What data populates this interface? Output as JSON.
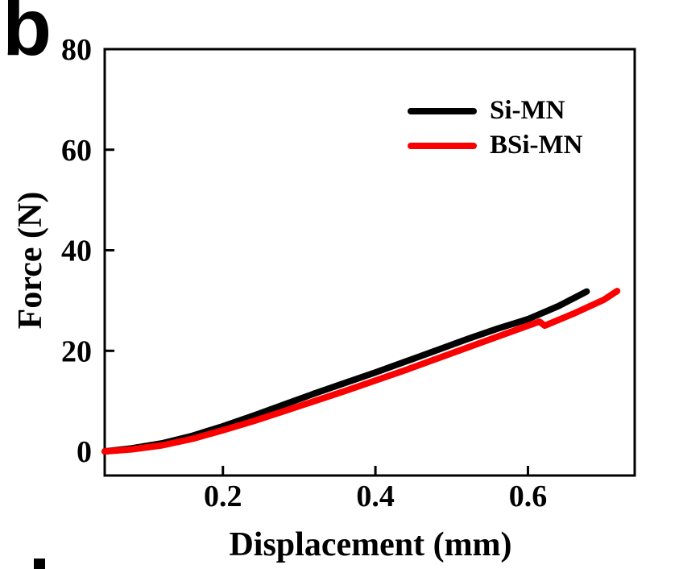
{
  "figure": {
    "panel_label": "b"
  },
  "chart_data": {
    "type": "line",
    "title": "",
    "xlabel": "Displacement (mm)",
    "ylabel": "Force (N)",
    "xlim": [
      0.045,
      0.74
    ],
    "ylim": [
      -4.8,
      80
    ],
    "xticks": {
      "values": [
        0.2,
        0.4,
        0.6
      ],
      "labels": [
        "0.2",
        "0.4",
        "0.6"
      ]
    },
    "yticks": {
      "values": [
        0,
        20,
        40,
        60,
        80
      ],
      "labels": [
        "0",
        "20",
        "40",
        "60",
        "80"
      ]
    },
    "grid": false,
    "legend_position": "upper-right-inside",
    "frame": "full-box",
    "axis_color": "#000000",
    "series": [
      {
        "name": "Si-MN",
        "color": "#000000",
        "x": [
          0.045,
          0.08,
          0.12,
          0.16,
          0.2,
          0.24,
          0.28,
          0.32,
          0.36,
          0.4,
          0.44,
          0.48,
          0.52,
          0.56,
          0.6,
          0.64,
          0.677
        ],
        "y": [
          0.0,
          0.6,
          1.6,
          3.1,
          5.0,
          7.1,
          9.3,
          11.5,
          13.6,
          15.7,
          17.9,
          20.1,
          22.3,
          24.4,
          26.3,
          28.9,
          31.8
        ]
      },
      {
        "name": "BSi-MN",
        "color": "#fb0000",
        "x": [
          0.045,
          0.08,
          0.12,
          0.16,
          0.2,
          0.24,
          0.28,
          0.32,
          0.36,
          0.4,
          0.44,
          0.48,
          0.52,
          0.56,
          0.6,
          0.615,
          0.622,
          0.66,
          0.7,
          0.717
        ],
        "y": [
          0.0,
          0.4,
          1.2,
          2.5,
          4.2,
          6.0,
          8.0,
          10.0,
          12.0,
          14.1,
          16.2,
          18.4,
          20.6,
          22.8,
          25.0,
          25.8,
          25.0,
          27.4,
          30.2,
          31.9
        ]
      }
    ]
  }
}
